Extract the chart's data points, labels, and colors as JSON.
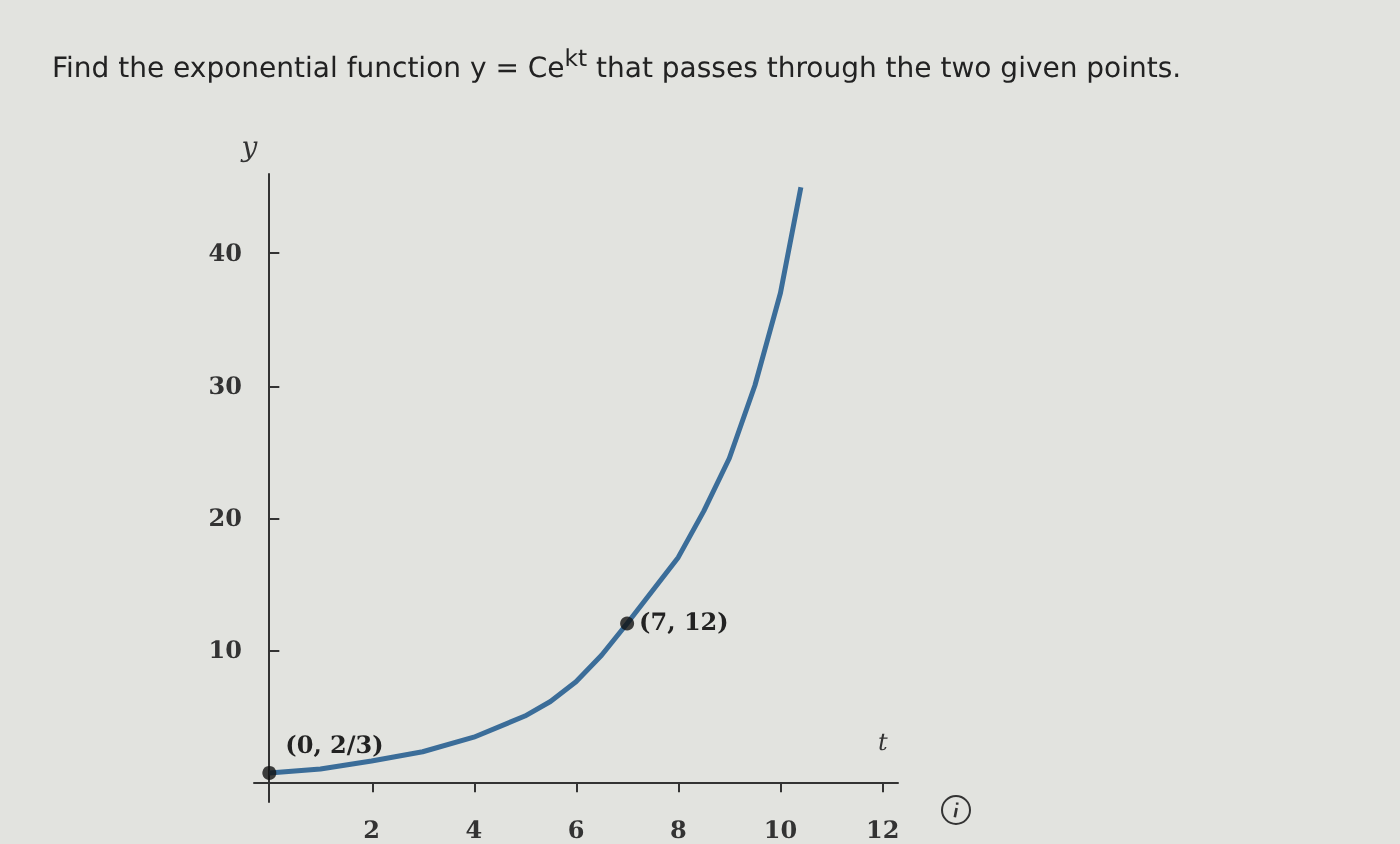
{
  "chart_data": {
    "type": "line",
    "title": "Find the exponential function y = Ce$^{kt}$ that passes through the two given points.",
    "xlabel": "t",
    "ylabel": "y",
    "x": [
      0,
      1,
      2,
      3,
      4,
      5,
      5.5,
      6,
      6.5,
      7,
      7.5,
      8,
      8.5,
      9,
      9.5,
      10,
      10.4
    ],
    "series": [
      {
        "color": "#3b6d99",
        "values": [
          0.7,
          1.0,
          1.6,
          2.3,
          3.4,
          5.0,
          6.1,
          7.6,
          9.6,
          12,
          14.5,
          17,
          20.5,
          24.5,
          30,
          37,
          45
        ],
        "marker": "none"
      },
      {
        "type": "scatter",
        "color": "#111111",
        "x": [
          0,
          7
        ],
        "values": [
          0.7,
          12
        ],
        "marker": "circle"
      }
    ],
    "annotations": [
      {
        "text": "(0, 2/3)",
        "x": 0,
        "y": 0.7
      },
      {
        "text": "(7, 12)",
        "x": 7,
        "y": 12
      }
    ],
    "xlim": [
      -0.3,
      12.3
    ],
    "ylim": [
      -1.5,
      46
    ],
    "xticks": [
      2,
      4,
      6,
      8,
      10,
      12
    ],
    "yticks": [
      10,
      20,
      30,
      40
    ],
    "grid": false
  }
}
